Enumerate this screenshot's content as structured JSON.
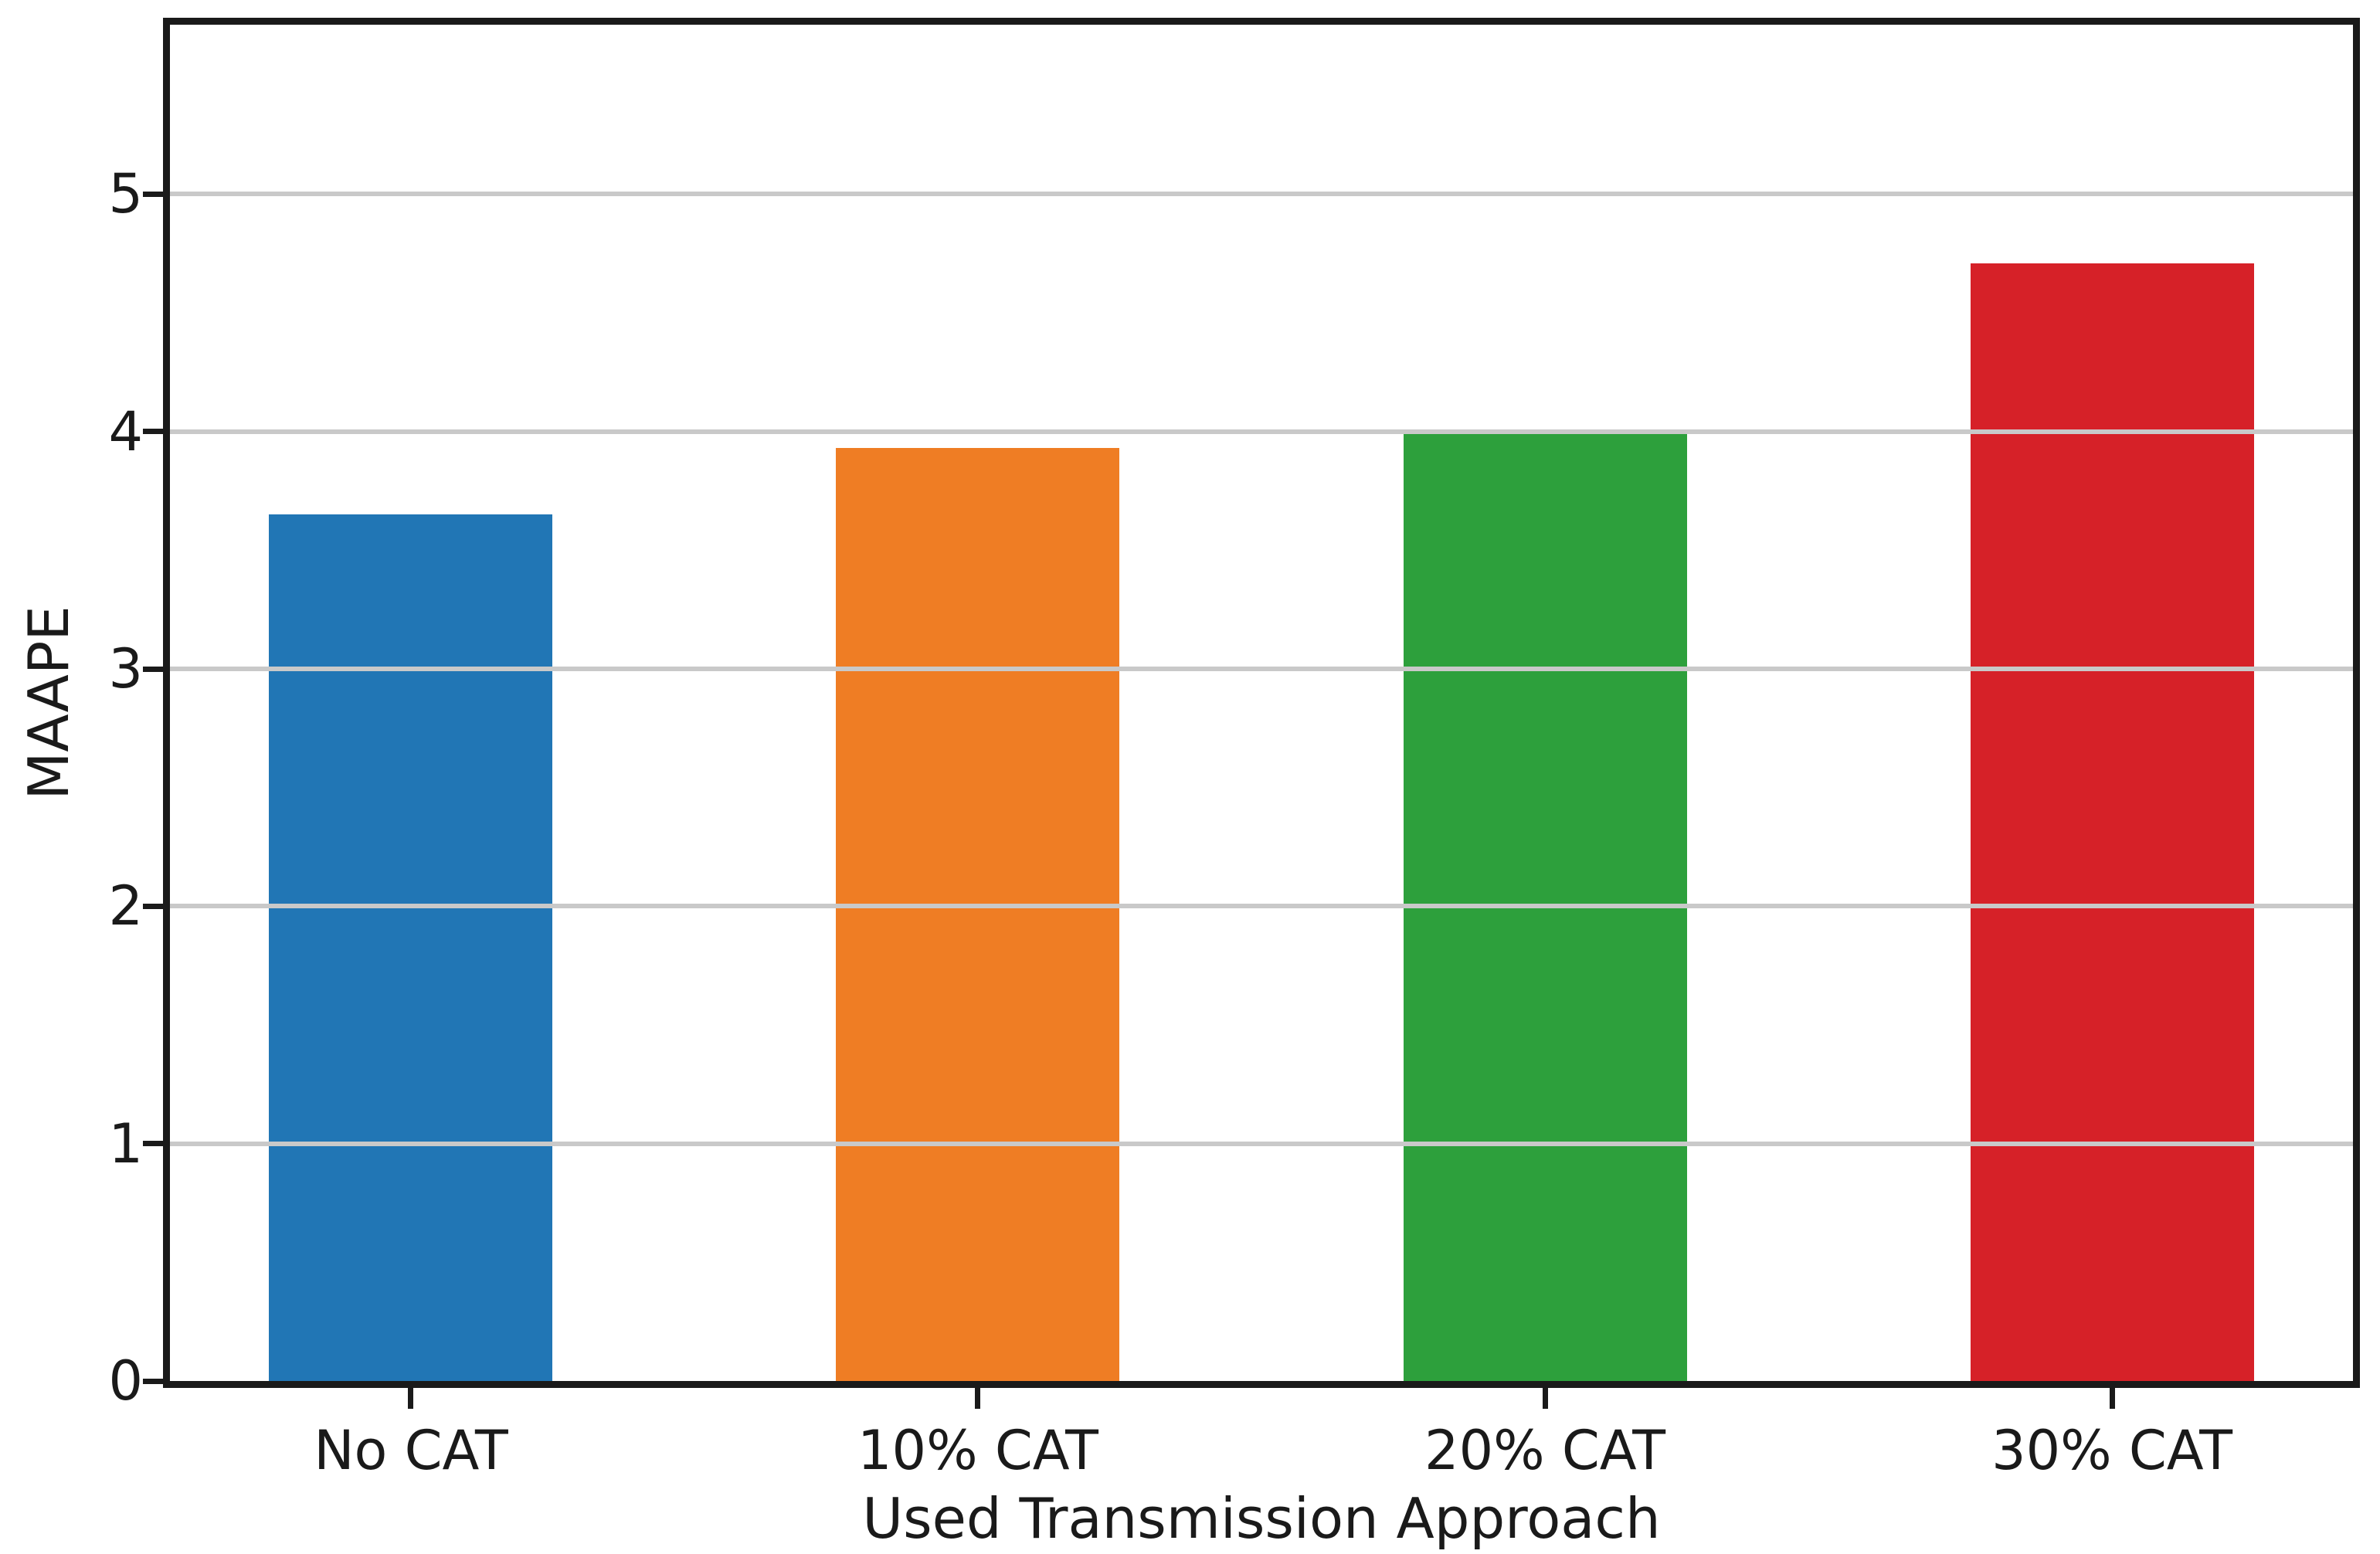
{
  "chart_data": {
    "type": "bar",
    "title": "",
    "xlabel": "Used Transmission Approach",
    "ylabel": "MAAPE",
    "categories": [
      "No CAT",
      "10% CAT",
      "20% CAT",
      "30% CAT"
    ],
    "values": [
      3.65,
      3.93,
      3.99,
      4.71
    ],
    "series": [
      {
        "name": "MAAPE",
        "values": [
          3.65,
          3.93,
          3.99,
          4.71
        ]
      }
    ],
    "bar_colors": [
      "#2176b5",
      "#ef7d24",
      "#2da03c",
      "#d62128"
    ],
    "yticks": [
      "0",
      "1",
      "2",
      "3",
      "4",
      "5"
    ],
    "ytick_values": [
      0,
      1,
      2,
      3,
      4,
      5
    ],
    "ylim": [
      0,
      5.714
    ],
    "xlim": [
      -0.425,
      3.425
    ],
    "bar_width_units": 0.5,
    "grid": "horizontal gridlines at integer y values, drawn over bars",
    "grid_values": [
      1,
      2,
      3,
      4,
      5
    ],
    "grid_color": "#c9c9c9",
    "legend_position": "none",
    "spine_color": "#1a1a1a",
    "background_color": "#ffffff"
  }
}
